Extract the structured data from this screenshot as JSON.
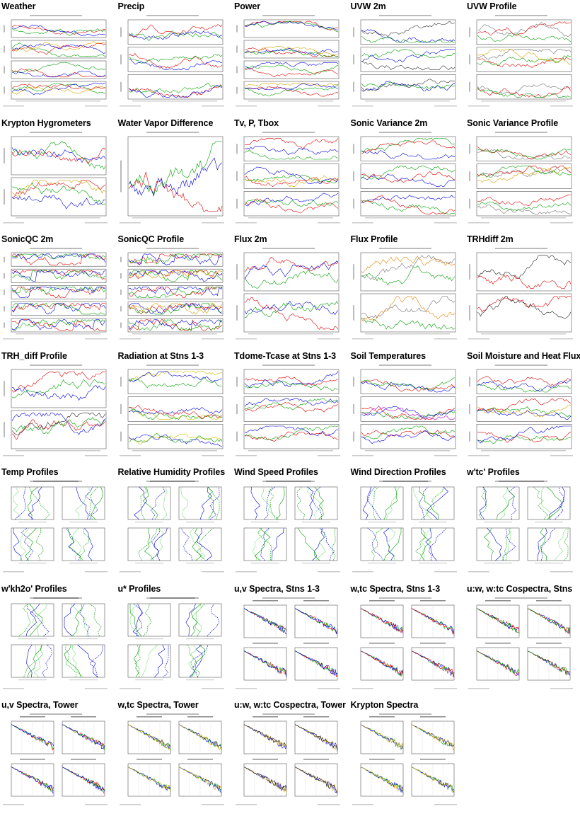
{
  "gallery": {
    "items": [
      {
        "title": "Weather",
        "kind": "ts",
        "panels": 4,
        "colors": [
          "#e00000",
          "#00a000",
          "#0000e0",
          "#d0a000"
        ]
      },
      {
        "title": "Precip",
        "kind": "ts",
        "panels": 3,
        "colors": [
          "#e00000",
          "#00a000",
          "#0000e0"
        ]
      },
      {
        "title": "Power",
        "kind": "ts",
        "panels": 4,
        "colors": [
          "#e00000",
          "#00a000",
          "#0000e0",
          "#d0a000"
        ]
      },
      {
        "title": "UVW 2m",
        "kind": "ts",
        "panels": 3,
        "colors": [
          "#0000e0",
          "#00a000",
          "#303030"
        ]
      },
      {
        "title": "UVW Profile",
        "kind": "ts",
        "panels": 3,
        "colors": [
          "#707070",
          "#e00000",
          "#00a000",
          "#d0a000"
        ]
      },
      {
        "title": "Krypton Hygrometers",
        "kind": "ts",
        "panels": 2,
        "colors": [
          "#e00000",
          "#0000e0",
          "#00a000",
          "#d0a000",
          "#c000c0"
        ]
      },
      {
        "title": "Water Vapor Difference",
        "kind": "ts",
        "panels": 1,
        "colors": [
          "#e00000",
          "#0000e0",
          "#00a000"
        ]
      },
      {
        "title": "Tv, P, Tbox",
        "kind": "ts",
        "panels": 3,
        "colors": [
          "#e00000",
          "#00a000",
          "#0000e0",
          "#d0a000"
        ]
      },
      {
        "title": "Sonic Variance 2m",
        "kind": "ts",
        "panels": 3,
        "colors": [
          "#0000e0",
          "#00a000",
          "#e00000"
        ]
      },
      {
        "title": "Sonic Variance Profile",
        "kind": "ts",
        "panels": 3,
        "colors": [
          "#707070",
          "#e00000",
          "#00a000",
          "#d0a000"
        ]
      },
      {
        "title": "SonicQC 2m",
        "kind": "ts",
        "panels": 5,
        "colors": [
          "#e00000",
          "#00a000",
          "#0000e0"
        ]
      },
      {
        "title": "SonicQC Profile",
        "kind": "ts",
        "panels": 5,
        "colors": [
          "#e00000",
          "#00a000",
          "#0000e0",
          "#d0a000"
        ]
      },
      {
        "title": "Flux 2m",
        "kind": "ts",
        "panels": 2,
        "colors": [
          "#00a000",
          "#e00000",
          "#0000e0"
        ]
      },
      {
        "title": "Flux Profile",
        "kind": "ts",
        "panels": 2,
        "colors": [
          "#707070",
          "#e08000",
          "#00a000"
        ]
      },
      {
        "title": "TRHdiff 2m",
        "kind": "ts",
        "panels": 2,
        "colors": [
          "#e00000",
          "#202020"
        ]
      },
      {
        "title": "TRH_diff Profile",
        "kind": "ts",
        "panels": 2,
        "colors": [
          "#e00000",
          "#00a000",
          "#0000e0",
          "#202020"
        ]
      },
      {
        "title": "Radiation at Stns 1-3",
        "kind": "ts",
        "panels": 3,
        "colors": [
          "#d0c000",
          "#00a000",
          "#0000e0",
          "#e00000"
        ]
      },
      {
        "title": "Tdome-Tcase at Stns 1-3",
        "kind": "ts",
        "panels": 3,
        "colors": [
          "#e00000",
          "#00a000",
          "#0000e0"
        ]
      },
      {
        "title": "Soil Temperatures",
        "kind": "ts",
        "panels": 3,
        "colors": [
          "#e00000",
          "#00a000",
          "#0000e0",
          "#c000c0"
        ]
      },
      {
        "title": "Soil Moisture and Heat Flux",
        "kind": "ts",
        "panels": 3,
        "colors": [
          "#e00000",
          "#00a000",
          "#0000e0",
          "#d0a000"
        ]
      },
      {
        "title": "Temp Profiles",
        "kind": "prof",
        "panels": 4,
        "colors": [
          "#0000e0",
          "#00a000",
          "#80e080"
        ]
      },
      {
        "title": "Relative Humidity Profiles",
        "kind": "prof",
        "panels": 4,
        "colors": [
          "#00a000",
          "#0000e0",
          "#80e080"
        ]
      },
      {
        "title": "Wind Speed Profiles",
        "kind": "prof",
        "panels": 4,
        "colors": [
          "#0000e0",
          "#00a000",
          "#80e080"
        ]
      },
      {
        "title": "Wind Direction Profiles",
        "kind": "prof",
        "panels": 4,
        "colors": [
          "#0000e0",
          "#00a000",
          "#80e080"
        ]
      },
      {
        "title": "w'tc' Profiles",
        "kind": "prof",
        "panels": 4,
        "colors": [
          "#0000e0",
          "#00a000",
          "#80e080"
        ]
      },
      {
        "title": "w'kh2o' Profiles",
        "kind": "prof",
        "panels": 4,
        "colors": [
          "#0000e0",
          "#00a000",
          "#80e080"
        ]
      },
      {
        "title": "u* Profiles",
        "kind": "prof",
        "panels": 4,
        "colors": [
          "#0000e0",
          "#00a000",
          "#80e080"
        ]
      },
      {
        "title": "u,v Spectra, Stns 1-3",
        "kind": "spec",
        "panels": 4,
        "colors": [
          "#e00000",
          "#00a000",
          "#0000e0"
        ]
      },
      {
        "title": "w,tc Spectra, Stns 1-3",
        "kind": "spec",
        "panels": 4,
        "colors": [
          "#e00000",
          "#00a000",
          "#0000e0"
        ]
      },
      {
        "title": "u:w, w:tc Cospectra, Stns",
        "kind": "spec",
        "panels": 4,
        "colors": [
          "#e00000",
          "#00a000",
          "#0000e0"
        ]
      },
      {
        "title": "u,v Spectra, Tower",
        "kind": "spec",
        "panels": 4,
        "colors": [
          "#e00000",
          "#00a000",
          "#0000e0",
          "#d0a000",
          "#202020"
        ]
      },
      {
        "title": "w,tc Spectra, Tower",
        "kind": "spec",
        "panels": 4,
        "colors": [
          "#e00000",
          "#00a000",
          "#0000e0",
          "#d0a000",
          "#202020"
        ]
      },
      {
        "title": "u:w, w:tc Cospectra, Tower",
        "kind": "spec",
        "panels": 4,
        "colors": [
          "#e00000",
          "#00a000",
          "#0000e0",
          "#d0a000",
          "#202020"
        ]
      },
      {
        "title": "Krypton Spectra",
        "kind": "spec",
        "panels": 4,
        "colors": [
          "#e00000",
          "#00a000",
          "#0000e0",
          "#d0a000"
        ]
      }
    ]
  }
}
